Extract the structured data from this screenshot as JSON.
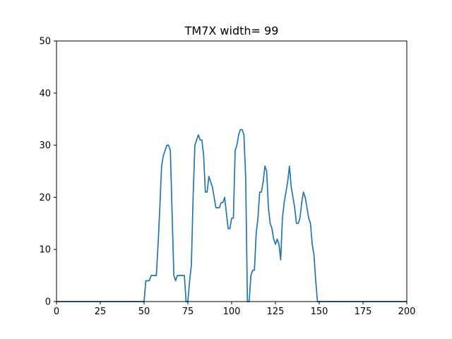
{
  "chart_data": {
    "type": "line",
    "title": "TM7X width= 99",
    "xlabel": "",
    "ylabel": "",
    "xlim": [
      0,
      200
    ],
    "ylim": [
      0,
      50
    ],
    "xticks": [
      0,
      25,
      50,
      75,
      100,
      125,
      150,
      175,
      200
    ],
    "yticks": [
      0,
      10,
      20,
      30,
      40,
      50
    ],
    "grid": false,
    "line_color": "#1f77b4",
    "series": [
      {
        "x": [
          0,
          50,
          51,
          52,
          53,
          54,
          55,
          56,
          57,
          58,
          59,
          60,
          61,
          62,
          63,
          64,
          65,
          66,
          67,
          68,
          69,
          70,
          71,
          72,
          73,
          74,
          75,
          76,
          77,
          78,
          79,
          80,
          81,
          82,
          83,
          84,
          85,
          86,
          87,
          88,
          89,
          90,
          91,
          92,
          93,
          94,
          95,
          96,
          97,
          98,
          99,
          100,
          101,
          102,
          103,
          104,
          105,
          106,
          107,
          108,
          109,
          110,
          111,
          112,
          113,
          114,
          115,
          116,
          117,
          118,
          119,
          120,
          121,
          122,
          123,
          124,
          125,
          126,
          127,
          128,
          129,
          130,
          131,
          132,
          133,
          134,
          135,
          136,
          137,
          138,
          139,
          140,
          141,
          142,
          143,
          144,
          145,
          146,
          147,
          148,
          149,
          150,
          200
        ],
        "y": [
          0,
          0,
          4,
          4,
          4,
          5,
          5,
          5,
          5,
          11,
          18,
          26,
          28,
          29,
          30,
          30,
          29,
          17,
          5,
          4,
          5,
          5,
          5,
          5,
          5,
          0,
          0,
          4,
          7,
          20,
          30,
          31,
          32,
          31,
          31,
          28,
          21,
          21,
          24,
          23,
          22,
          20,
          18,
          18,
          18,
          19,
          19,
          20,
          17,
          14,
          14,
          16,
          16,
          29,
          30,
          32,
          33,
          33,
          32,
          24,
          0,
          0,
          5,
          6,
          6,
          13,
          16,
          21,
          21,
          23,
          26,
          25,
          18,
          15,
          14,
          12,
          11,
          12,
          11,
          8,
          16,
          19,
          21,
          23,
          26,
          22,
          20,
          18,
          15,
          15,
          16,
          19,
          21,
          20,
          18,
          16,
          15,
          11,
          9,
          4,
          0,
          0,
          0
        ]
      }
    ]
  }
}
